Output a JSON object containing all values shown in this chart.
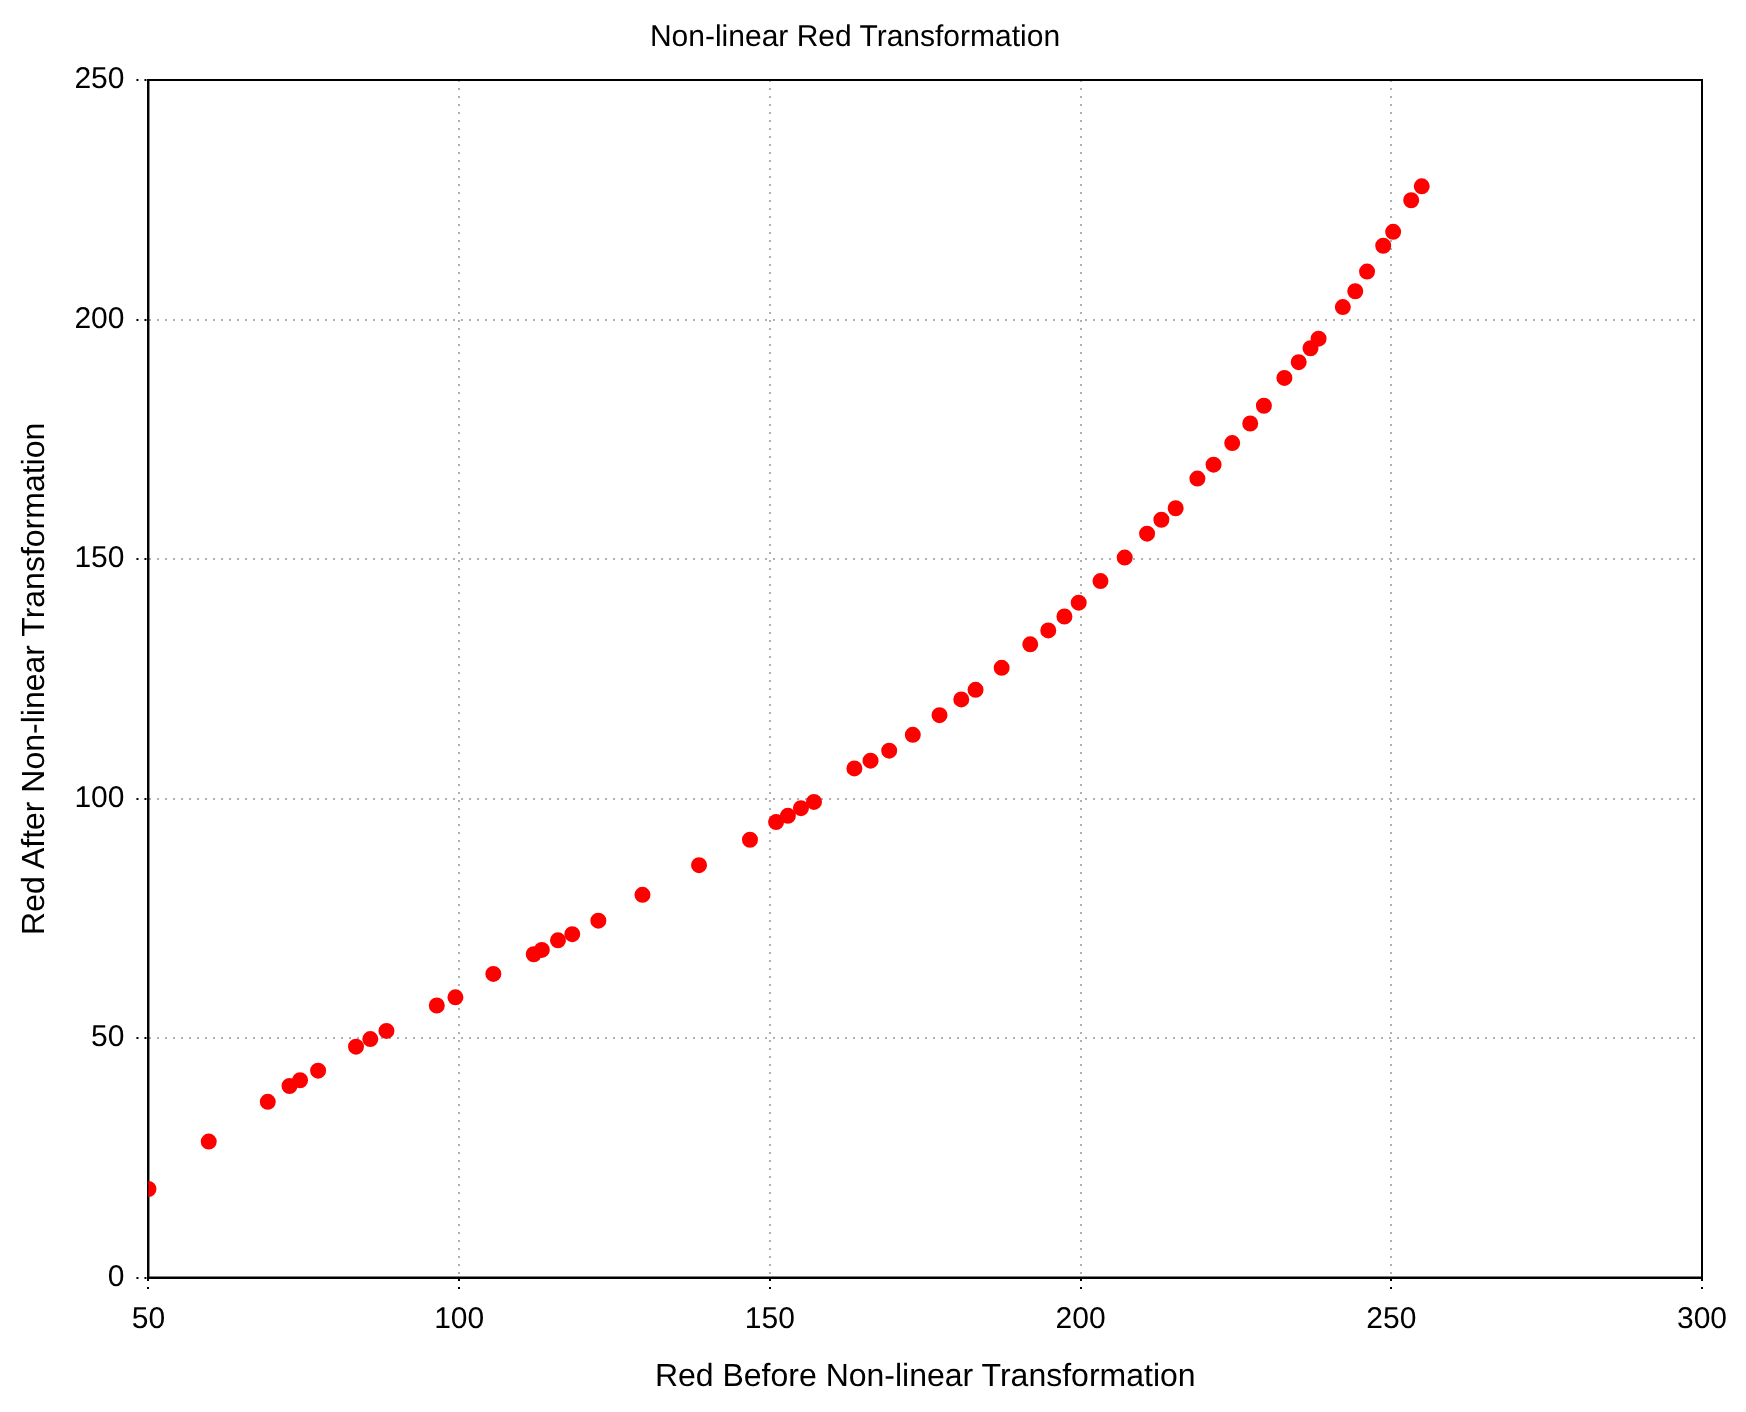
{
  "chart_data": {
    "type": "scatter",
    "title": "Non-linear Red Transformation",
    "xlabel": "Red Before Non-linear Transformation",
    "ylabel": "Red After Non-linear Transformation",
    "xlim": [
      50,
      300
    ],
    "xticks": [
      50,
      100,
      150,
      200,
      250,
      300
    ],
    "ylim": [
      0,
      250
    ],
    "yticks": [
      0,
      50,
      100,
      150,
      200,
      250
    ],
    "grid": true,
    "marker": "circle",
    "legend": false,
    "series": [
      {
        "color": "#ff0000",
        "x": [
          50,
          59.7,
          69.2,
          72.7,
          74.4,
          77.3,
          83.4,
          85.7,
          88.3,
          96.4,
          99.4,
          105.5,
          112,
          113.3,
          115.9,
          118.2,
          122.4,
          129.5,
          138.6,
          146.8,
          151,
          152.9,
          155,
          157.1,
          163.6,
          166.2,
          169.2,
          173,
          177.3,
          180.8,
          183.1,
          187.3,
          191.9,
          194.8,
          197.4,
          199.7,
          203.2,
          207.1,
          210.7,
          213,
          215.3,
          218.8,
          221.4,
          224.4,
          227.3,
          229.5,
          232.8,
          235.1,
          237,
          238.3,
          242.2,
          244.2,
          246.1,
          248.7,
          250.3,
          253.2,
          254.9
        ],
        "values": [
          18.5,
          28.4,
          36.7,
          40,
          41.2,
          43.2,
          48.2,
          49.8,
          51.5,
          56.8,
          58.5,
          63.4,
          67.5,
          68.4,
          70.4,
          71.7,
          74.5,
          79.9,
          86.1,
          91.4,
          95.1,
          96.4,
          98,
          99.3,
          106.3,
          107.9,
          110,
          113.3,
          117.4,
          120.7,
          122.7,
          127.3,
          132.2,
          135.1,
          138,
          140.9,
          145.4,
          150.3,
          155.3,
          158.2,
          160.6,
          166.8,
          169.7,
          174.2,
          178.3,
          182,
          187.8,
          191.1,
          194,
          196,
          202.6,
          205.9,
          210,
          215.4,
          218.3,
          224.9,
          227.8
        ]
      }
    ]
  }
}
